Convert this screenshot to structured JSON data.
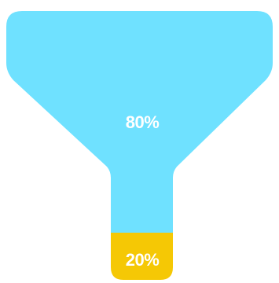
{
  "chart_data": {
    "type": "funnel",
    "title": "",
    "segments": [
      {
        "value": 80,
        "label": "80%",
        "color": "#6FE1FF"
      },
      {
        "value": 20,
        "label": "20%",
        "color": "#F5C805"
      }
    ],
    "unit": "%",
    "legend": "none",
    "grid": false
  }
}
